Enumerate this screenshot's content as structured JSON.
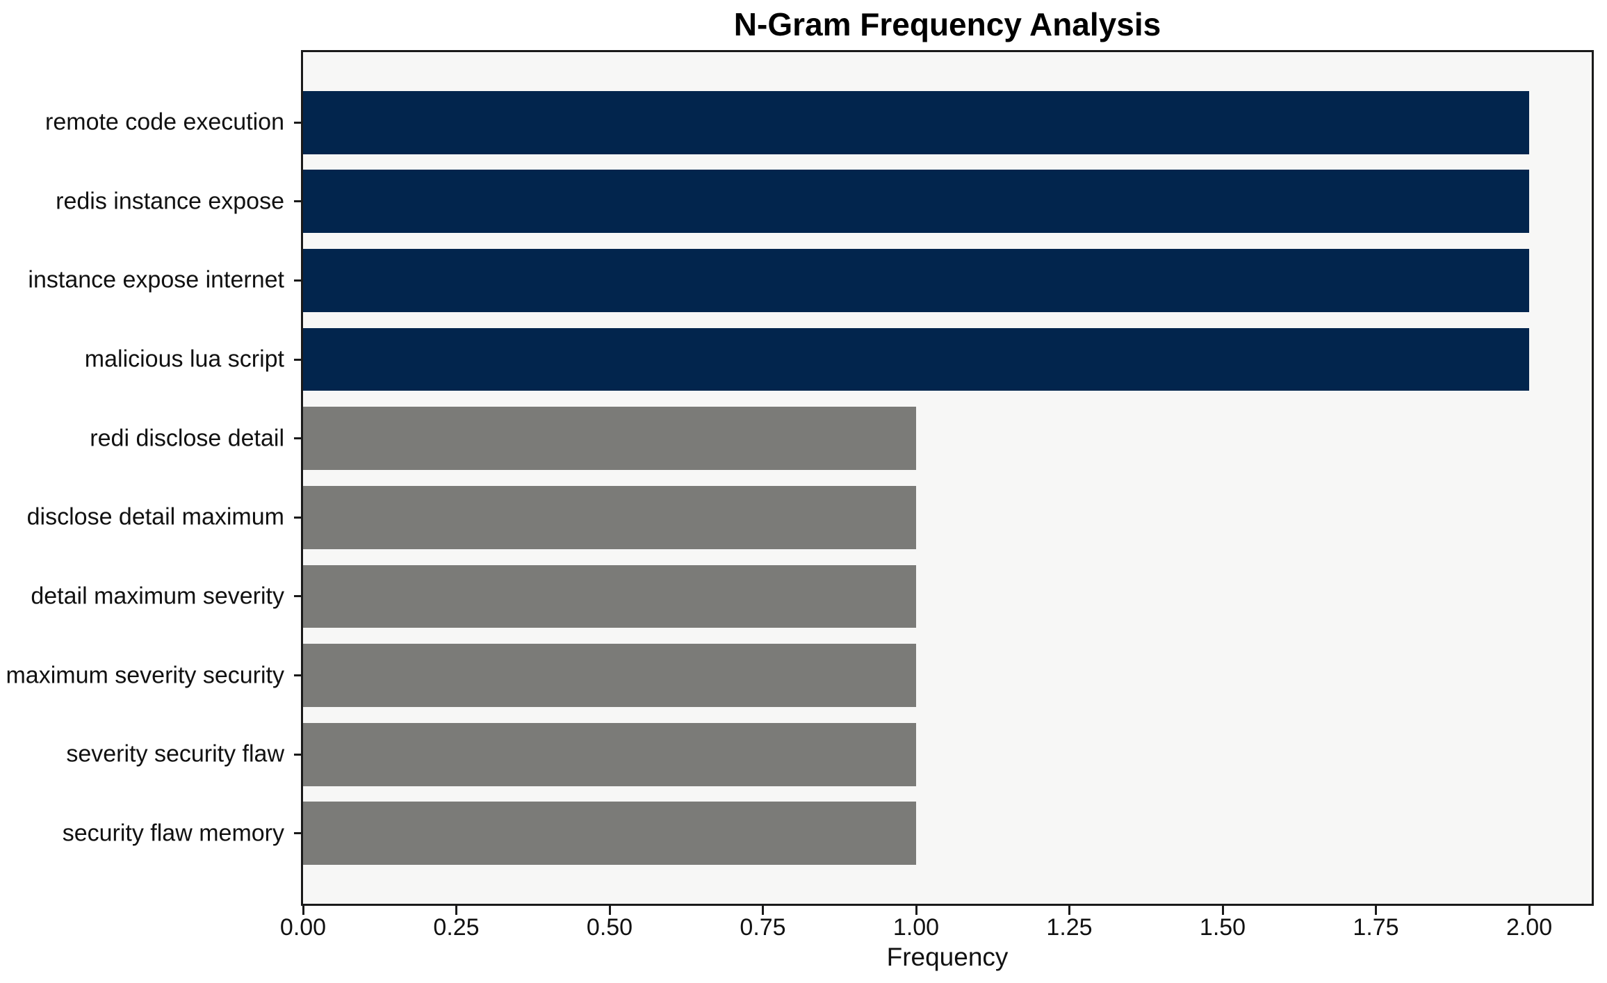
{
  "chart_data": {
    "type": "bar",
    "orientation": "horizontal",
    "title": "N-Gram Frequency Analysis",
    "xlabel": "Frequency",
    "ylabel": "",
    "categories": [
      "remote code execution",
      "redis instance expose",
      "instance expose internet",
      "malicious lua script",
      "redi disclose detail",
      "disclose detail maximum",
      "detail maximum severity",
      "maximum severity security",
      "severity security flaw",
      "security flaw memory"
    ],
    "values": [
      2,
      2,
      2,
      2,
      1,
      1,
      1,
      1,
      1,
      1
    ],
    "bar_colors": [
      "#02254d",
      "#02254d",
      "#02254d",
      "#02254d",
      "#7b7b78",
      "#7b7b78",
      "#7b7b78",
      "#7b7b78",
      "#7b7b78",
      "#7b7b78"
    ],
    "xlim": [
      0,
      2.102
    ],
    "xticks": [
      0,
      0.25,
      0.5,
      0.75,
      1.0,
      1.25,
      1.5,
      1.75,
      2.0
    ],
    "xtick_labels": [
      "0.00",
      "0.25",
      "0.50",
      "0.75",
      "1.00",
      "1.25",
      "1.50",
      "1.75",
      "2.00"
    ],
    "grid": false,
    "legend_position": "none",
    "bar_fraction": 0.8,
    "y_margin": 0.05,
    "colors": {
      "high_frequency_bar": "#02254d",
      "low_frequency_bar": "#7b7b78",
      "plot_background": "#f7f7f6",
      "figure_background": "#ffffff",
      "spine": "#1a1a1a",
      "text": "#111111"
    }
  }
}
